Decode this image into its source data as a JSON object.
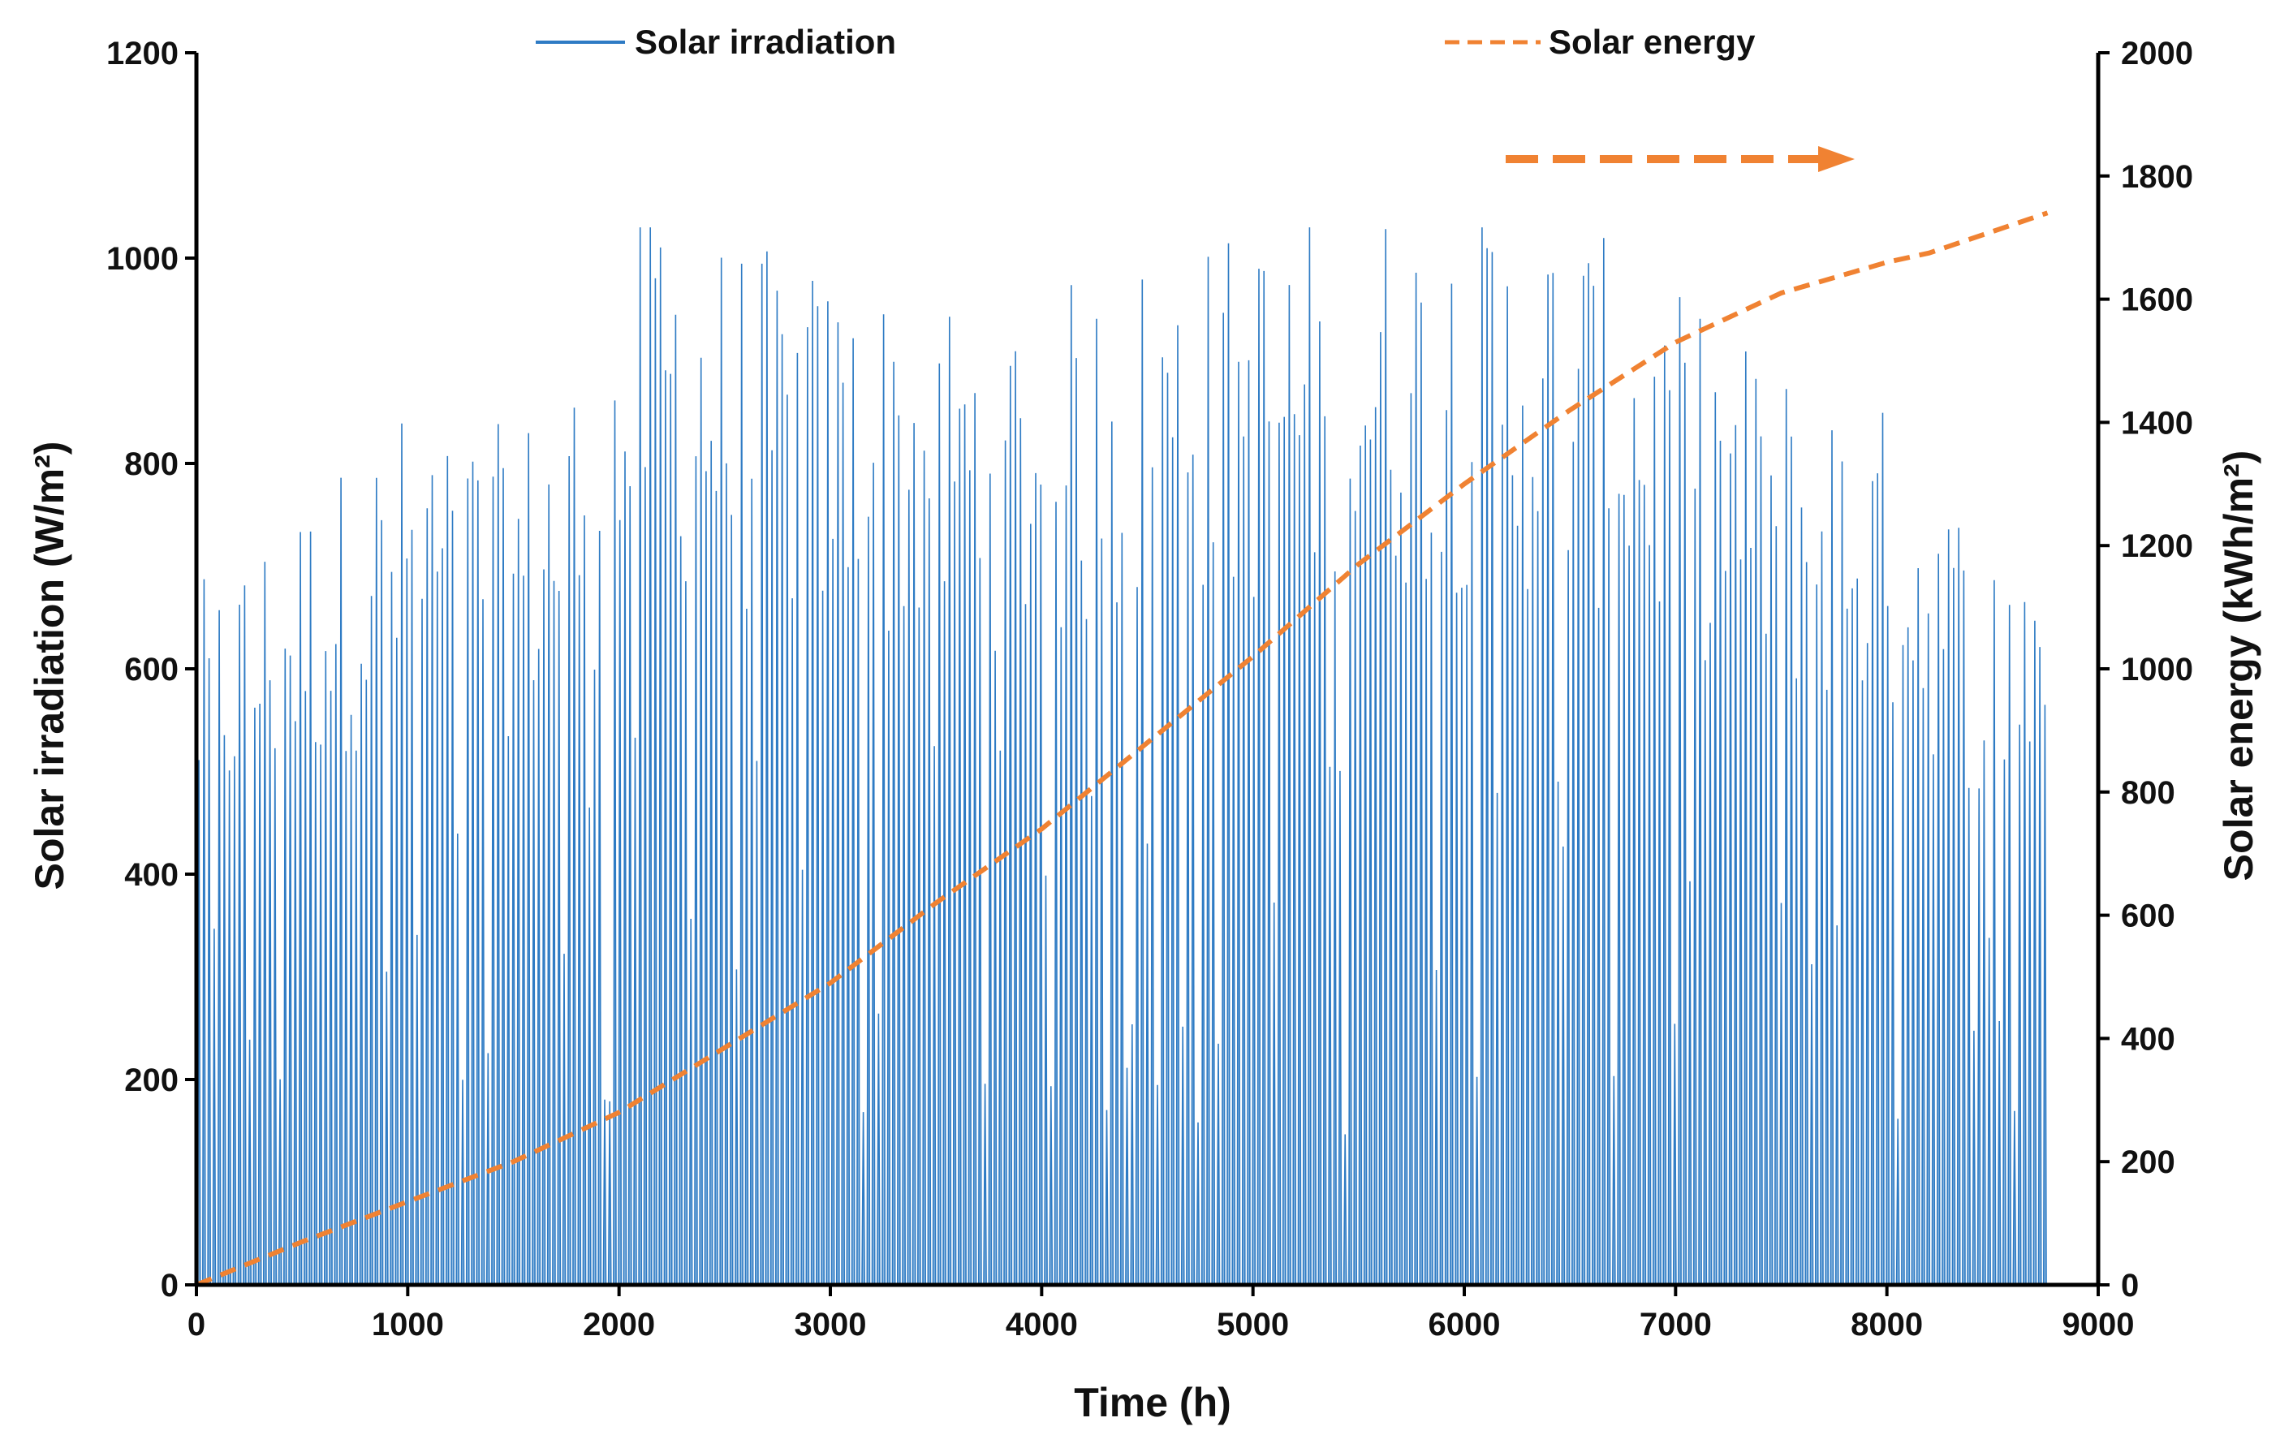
{
  "chart_data": {
    "type": "line",
    "title": "",
    "xlabel": "Time (h)",
    "ylabel_left": "Solar irradiation (W/m²)",
    "ylabel_right": "Solar energy (kWh/m²)",
    "xlim": [
      0,
      9000
    ],
    "xticks": [
      0,
      1000,
      2000,
      3000,
      4000,
      5000,
      6000,
      7000,
      8000,
      9000
    ],
    "ylim_left": [
      0,
      1200
    ],
    "yticks_left": [
      0,
      200,
      400,
      600,
      800,
      1000,
      1200
    ],
    "ylim_right": [
      0,
      2000
    ],
    "yticks_right": [
      0,
      200,
      400,
      600,
      800,
      1000,
      1200,
      1400,
      1600,
      1800,
      2000
    ],
    "grid": false,
    "legend_placement": "top",
    "series": [
      {
        "name": "Solar irradiation",
        "axis": "left",
        "style": "solid",
        "color": "#2E7BC4",
        "description_of_values": "hourly irradiation over 8760 h; daily peaks envelope below",
        "daily_peak_envelope": {
          "x": [
            0,
            500,
            1000,
            1500,
            2000,
            2100,
            2500,
            3000,
            3500,
            4000,
            4500,
            5000,
            5500,
            6000,
            6500,
            7000,
            7500,
            8000,
            8500,
            8760
          ],
          "y": [
            620,
            700,
            780,
            760,
            880,
            1000,
            930,
            900,
            880,
            880,
            920,
            940,
            960,
            960,
            950,
            880,
            820,
            780,
            660,
            700
          ]
        }
      },
      {
        "name": "Solar energy",
        "axis": "right",
        "style": "dashed",
        "color": "#F08232",
        "x": [
          0,
          500,
          1000,
          1500,
          2000,
          2500,
          3000,
          3500,
          4000,
          4500,
          5000,
          5500,
          6000,
          6500,
          7000,
          7500,
          8000,
          8200,
          8760
        ],
        "y": [
          0,
          70,
          135,
          200,
          280,
          385,
          490,
          620,
          740,
          880,
          1020,
          1170,
          1300,
          1420,
          1530,
          1610,
          1660,
          1675,
          1740
        ]
      }
    ]
  },
  "legend": {
    "irradiation_label": "Solar irradiation",
    "energy_label": "Solar energy"
  },
  "colors": {
    "irradiation": "#2E7BC4",
    "energy": "#F08232",
    "axis": "#000000"
  }
}
